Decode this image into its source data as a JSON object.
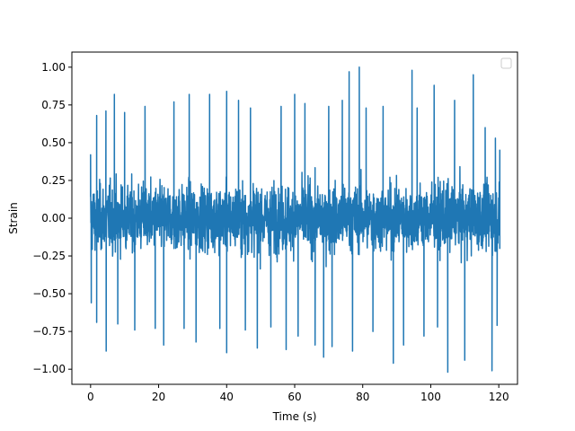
{
  "chart_data": {
    "type": "line",
    "title": "",
    "xlabel": "Time (s)",
    "ylabel": "Strain",
    "xlim": [
      -5.5,
      125.5
    ],
    "ylim": [
      -1.1,
      1.1
    ],
    "x_ticks": [
      0,
      20,
      40,
      60,
      80,
      100,
      120
    ],
    "x_tick_labels": [
      "0",
      "20",
      "40",
      "60",
      "80",
      "100",
      "120"
    ],
    "y_ticks": [
      -1.0,
      -0.75,
      -0.5,
      -0.25,
      0.0,
      0.25,
      0.5,
      0.75,
      1.0
    ],
    "y_tick_labels": [
      "−1.00",
      "−0.75",
      "−0.50",
      "−0.25",
      "0.00",
      "0.25",
      "0.50",
      "0.75",
      "1.00"
    ],
    "grid": false,
    "legend": {
      "placement": "top-right",
      "entries": []
    },
    "series": [
      {
        "color": "#1f77b4",
        "x_range": [
          0,
          120.3
        ],
        "sample_count": 2400,
        "typical_amplitude": 0.45,
        "peaks": [
          {
            "x": 0.0,
            "y": 0.42
          },
          {
            "x": 0.2,
            "y": -0.56
          },
          {
            "x": 1.8,
            "y": 0.68
          },
          {
            "x": 1.8,
            "y": -0.69
          },
          {
            "x": 4.5,
            "y": 0.71
          },
          {
            "x": 4.6,
            "y": -0.88
          },
          {
            "x": 7.0,
            "y": 0.82
          },
          {
            "x": 8.0,
            "y": -0.7
          },
          {
            "x": 10.0,
            "y": 0.7
          },
          {
            "x": 13.0,
            "y": -0.74
          },
          {
            "x": 16.0,
            "y": 0.74
          },
          {
            "x": 19.0,
            "y": -0.73
          },
          {
            "x": 21.5,
            "y": -0.84
          },
          {
            "x": 24.5,
            "y": 0.77
          },
          {
            "x": 27.5,
            "y": -0.73
          },
          {
            "x": 29.0,
            "y": 0.82
          },
          {
            "x": 31.0,
            "y": -0.82
          },
          {
            "x": 35.0,
            "y": 0.82
          },
          {
            "x": 38.0,
            "y": -0.73
          },
          {
            "x": 40.0,
            "y": 0.84
          },
          {
            "x": 40.0,
            "y": -0.89
          },
          {
            "x": 43.5,
            "y": 0.78
          },
          {
            "x": 45.5,
            "y": -0.74
          },
          {
            "x": 47.0,
            "y": 0.73
          },
          {
            "x": 49.0,
            "y": -0.86
          },
          {
            "x": 53.0,
            "y": -0.72
          },
          {
            "x": 56.0,
            "y": 0.74
          },
          {
            "x": 57.5,
            "y": -0.87
          },
          {
            "x": 60.0,
            "y": 0.82
          },
          {
            "x": 61.0,
            "y": -0.78
          },
          {
            "x": 63.0,
            "y": 0.76
          },
          {
            "x": 66.0,
            "y": -0.84
          },
          {
            "x": 68.5,
            "y": -0.92
          },
          {
            "x": 70.0,
            "y": 0.74
          },
          {
            "x": 71.0,
            "y": -0.85
          },
          {
            "x": 74.0,
            "y": 0.78
          },
          {
            "x": 76.0,
            "y": 0.97
          },
          {
            "x": 77.0,
            "y": -0.88
          },
          {
            "x": 79.0,
            "y": 1.0
          },
          {
            "x": 81.0,
            "y": 0.73
          },
          {
            "x": 83.0,
            "y": -0.75
          },
          {
            "x": 86.0,
            "y": 0.74
          },
          {
            "x": 89.0,
            "y": -0.96
          },
          {
            "x": 92.0,
            "y": -0.84
          },
          {
            "x": 94.5,
            "y": 0.98
          },
          {
            "x": 96.0,
            "y": 0.73
          },
          {
            "x": 98.0,
            "y": -0.78
          },
          {
            "x": 101.0,
            "y": 0.88
          },
          {
            "x": 102.0,
            "y": -0.72
          },
          {
            "x": 105.0,
            "y": -1.02
          },
          {
            "x": 107.0,
            "y": 0.78
          },
          {
            "x": 110.0,
            "y": -0.94
          },
          {
            "x": 112.5,
            "y": 0.95
          },
          {
            "x": 116.0,
            "y": 0.6
          },
          {
            "x": 118.0,
            "y": -1.01
          },
          {
            "x": 119.0,
            "y": 0.53
          },
          {
            "x": 119.5,
            "y": -0.71
          },
          {
            "x": 120.3,
            "y": 0.45
          },
          {
            "x": 120.3,
            "y": -0.2
          }
        ]
      }
    ]
  }
}
